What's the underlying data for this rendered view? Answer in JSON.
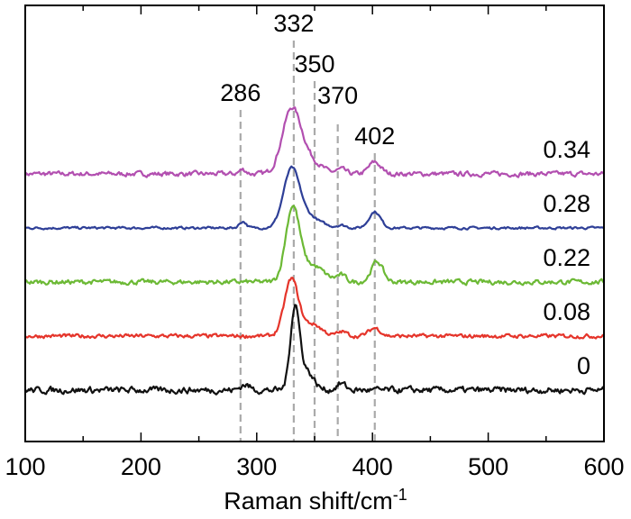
{
  "chart_data": {
    "type": "line",
    "xlabel": "Raman shift/cm",
    "xlabel_sup": "-1",
    "ylabel": "",
    "xlim": [
      100,
      600
    ],
    "x_ticks": [
      "100",
      "200",
      "300",
      "400",
      "500",
      "600"
    ],
    "y_ticks_shown": false,
    "grid": false,
    "legend": "none; series labels on the right of each trace",
    "peak_markers": [
      {
        "label": "286",
        "x": 286
      },
      {
        "label": "332",
        "x": 332
      },
      {
        "label": "350",
        "x": 350
      },
      {
        "label": "370",
        "x": 370
      },
      {
        "label": "402",
        "x": 402
      }
    ],
    "series": [
      {
        "name": "0.34",
        "color": "#b24fb0",
        "baseline": 5.0,
        "noise": 0.06,
        "peaks": [
          {
            "x": 330,
            "h": 1.15,
            "w": 8
          },
          {
            "x": 345,
            "h": 0.25,
            "w": 10
          },
          {
            "x": 402,
            "h": 0.22,
            "w": 5
          },
          {
            "x": 373,
            "h": 0.08,
            "w": 4
          },
          {
            "x": 288,
            "h": 0.08,
            "w": 3
          }
        ]
      },
      {
        "name": "0.28",
        "color": "#2e3f97",
        "baseline": 4.0,
        "noise": 0.03,
        "peaks": [
          {
            "x": 330,
            "h": 1.05,
            "w": 7
          },
          {
            "x": 345,
            "h": 0.2,
            "w": 10
          },
          {
            "x": 402,
            "h": 0.3,
            "w": 5
          },
          {
            "x": 373,
            "h": 0.05,
            "w": 4
          },
          {
            "x": 288,
            "h": 0.12,
            "w": 3
          }
        ]
      },
      {
        "name": "0.22",
        "color": "#6cb935",
        "baseline": 3.0,
        "noise": 0.06,
        "peaks": [
          {
            "x": 331,
            "h": 1.35,
            "w": 6
          },
          {
            "x": 348,
            "h": 0.3,
            "w": 10
          },
          {
            "x": 404,
            "h": 0.38,
            "w": 5
          },
          {
            "x": 373,
            "h": 0.12,
            "w": 4
          }
        ]
      },
      {
        "name": "0.08",
        "color": "#e5342a",
        "baseline": 2.0,
        "noise": 0.05,
        "peaks": [
          {
            "x": 330,
            "h": 1.05,
            "w": 6
          },
          {
            "x": 348,
            "h": 0.22,
            "w": 8
          },
          {
            "x": 402,
            "h": 0.15,
            "w": 5
          },
          {
            "x": 374,
            "h": 0.08,
            "w": 4
          }
        ]
      },
      {
        "name": "0",
        "color": "#111111",
        "baseline": 1.0,
        "noise": 0.08,
        "peaks": [
          {
            "x": 333,
            "h": 1.5,
            "w": 4
          },
          {
            "x": 343,
            "h": 0.35,
            "w": 6
          },
          {
            "x": 373,
            "h": 0.12,
            "w": 4
          },
          {
            "x": 290,
            "h": 0.1,
            "w": 4
          }
        ]
      }
    ]
  }
}
